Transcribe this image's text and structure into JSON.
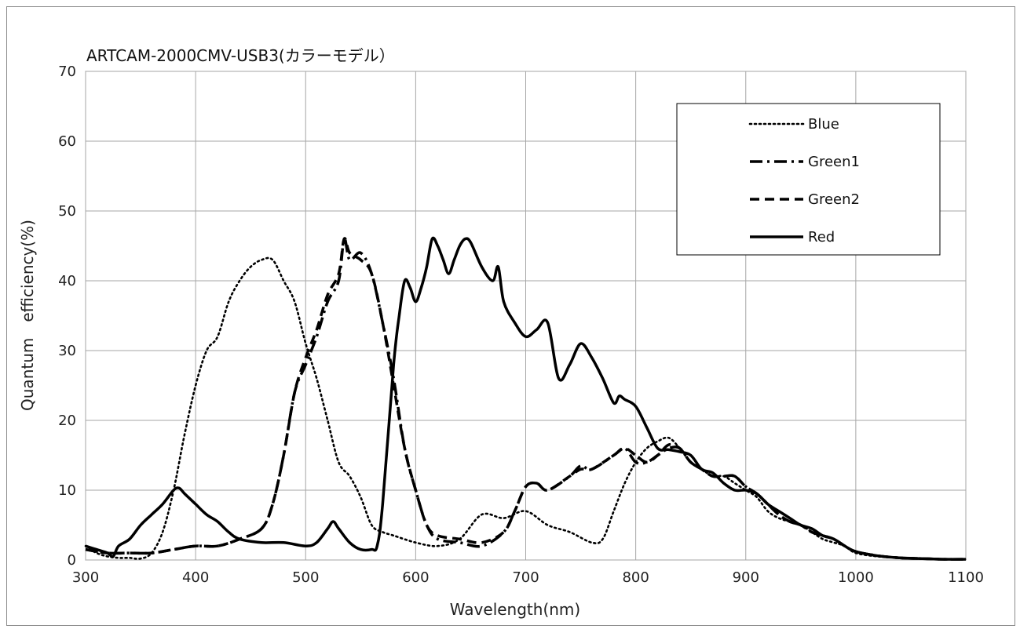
{
  "chart_data": {
    "type": "line",
    "title": "ARTCAM-2000CMV-USB3(カラーモデル）",
    "xlabel": "Wavelength(nm)",
    "ylabel": "Quantum　efficiency(%)",
    "xlim": [
      300,
      1100
    ],
    "ylim": [
      0,
      70
    ],
    "xticks": [
      300,
      400,
      500,
      600,
      700,
      800,
      900,
      1000,
      1100
    ],
    "yticks": [
      0,
      10,
      20,
      30,
      40,
      50,
      60,
      70
    ],
    "xtick_labels": [
      "300",
      "400",
      "500",
      "600",
      "700",
      "800",
      "900",
      "1000",
      "1100"
    ],
    "ytick_labels": [
      "0",
      "10",
      "20",
      "30",
      "40",
      "50",
      "60",
      "70"
    ],
    "grid": true,
    "legend": "top-right",
    "series": [
      {
        "name": "Blue",
        "dash": "dotted",
        "color": "#000000",
        "x": [
          300,
          310,
          320,
          330,
          340,
          350,
          360,
          370,
          380,
          390,
          400,
          410,
          420,
          430,
          440,
          450,
          460,
          470,
          480,
          490,
          500,
          510,
          520,
          530,
          540,
          550,
          560,
          570,
          580,
          600,
          620,
          640,
          660,
          680,
          700,
          720,
          740,
          760,
          770,
          780,
          790,
          800,
          810,
          820,
          830,
          840,
          850,
          860,
          870,
          880,
          890,
          900,
          910,
          920,
          930,
          940,
          950,
          960,
          970,
          980,
          990,
          1000,
          1020,
          1040,
          1060,
          1080,
          1100
        ],
        "y": [
          2,
          1,
          0.5,
          0.3,
          0.3,
          0.2,
          1,
          4,
          10,
          18,
          25,
          30,
          32,
          37,
          40,
          42,
          43,
          43,
          40,
          37,
          31,
          26,
          20,
          14,
          12,
          9,
          5,
          4,
          3.5,
          2.5,
          2,
          3,
          6.5,
          6,
          7,
          5,
          4,
          2.5,
          3,
          7,
          11,
          14,
          16,
          17,
          17.5,
          16,
          14,
          13,
          12,
          12,
          11,
          10,
          9,
          7,
          6,
          5.5,
          5,
          4,
          3,
          2.5,
          2,
          1,
          0.5,
          0.3,
          0.2,
          0.1,
          0.1
        ]
      },
      {
        "name": "Green1",
        "dash": "dash-dot",
        "color": "#000000",
        "x": [
          300,
          320,
          340,
          360,
          380,
          400,
          420,
          440,
          460,
          470,
          480,
          490,
          500,
          510,
          520,
          530,
          535,
          540,
          550,
          560,
          570,
          580,
          590,
          600,
          610,
          620,
          640,
          660,
          680,
          690,
          700,
          710,
          720,
          740,
          750,
          760,
          780,
          790,
          800,
          810,
          820,
          830,
          840,
          850,
          860,
          870,
          880,
          890,
          900,
          910,
          920,
          930,
          940,
          950,
          960,
          970,
          980,
          990,
          1000,
          1020,
          1040,
          1060,
          1080,
          1100
        ],
        "y": [
          1.5,
          1,
          1,
          1,
          1.5,
          2,
          2,
          3,
          4.5,
          8,
          15,
          24,
          28,
          32,
          37,
          40,
          46,
          43,
          44,
          41,
          34,
          26,
          16,
          10,
          5,
          3,
          2.5,
          2,
          4,
          7,
          10.5,
          11,
          10,
          12,
          13.5,
          13,
          15,
          16,
          14,
          14,
          15,
          16,
          16,
          14,
          13,
          12,
          12,
          12,
          10.5,
          9.5,
          8,
          6.5,
          5.5,
          5,
          4,
          3.5,
          3,
          2,
          1.2,
          0.6,
          0.3,
          0.2,
          0.1,
          0.1
        ]
      },
      {
        "name": "Green2",
        "dash": "dashed",
        "color": "#000000",
        "x": [
          300,
          320,
          340,
          360,
          380,
          400,
          420,
          440,
          460,
          470,
          480,
          490,
          500,
          510,
          520,
          530,
          535,
          540,
          550,
          560,
          570,
          580,
          590,
          600,
          610,
          620,
          640,
          660,
          680,
          690,
          700,
          710,
          720,
          740,
          750,
          760,
          780,
          790,
          800,
          810,
          820,
          830,
          840,
          850,
          860,
          870,
          880,
          890,
          900,
          910,
          920,
          930,
          940,
          950,
          960,
          970,
          980,
          990,
          1000,
          1020,
          1040,
          1060,
          1080,
          1100
        ],
        "y": [
          1.5,
          1,
          1,
          1,
          1.5,
          2,
          2,
          3,
          4.5,
          8,
          15,
          24,
          29,
          33,
          38,
          41,
          46,
          44,
          43,
          41,
          34,
          25,
          16,
          10,
          5,
          3.5,
          3,
          2.5,
          4,
          7,
          10.5,
          11,
          10,
          12,
          13,
          13,
          15,
          16,
          15,
          14,
          15,
          16.5,
          16,
          14,
          13,
          12,
          12,
          12,
          10.5,
          9.5,
          8,
          6.5,
          5.5,
          5,
          4,
          3.5,
          3,
          2,
          1.2,
          0.6,
          0.3,
          0.2,
          0.1,
          0.1
        ]
      },
      {
        "name": "Red",
        "dash": "solid",
        "color": "#000000",
        "x": [
          300,
          310,
          320,
          325,
          330,
          340,
          350,
          360,
          370,
          380,
          385,
          390,
          400,
          410,
          420,
          430,
          440,
          460,
          480,
          500,
          510,
          520,
          525,
          530,
          540,
          550,
          560,
          565,
          570,
          580,
          585,
          590,
          595,
          600,
          605,
          610,
          615,
          620,
          625,
          630,
          635,
          640,
          645,
          650,
          660,
          670,
          675,
          680,
          690,
          700,
          710,
          720,
          730,
          740,
          750,
          760,
          770,
          780,
          785,
          790,
          800,
          810,
          820,
          830,
          840,
          850,
          860,
          870,
          880,
          890,
          900,
          910,
          920,
          930,
          940,
          950,
          960,
          970,
          980,
          990,
          1000,
          1020,
          1040,
          1060,
          1080,
          1100
        ],
        "y": [
          2,
          1.5,
          1,
          0.5,
          2,
          3,
          5,
          6.5,
          8,
          10,
          10.3,
          9.5,
          8,
          6.5,
          5.5,
          4,
          3,
          2.5,
          2.5,
          2,
          2.5,
          4.5,
          5.5,
          4.5,
          2.5,
          1.5,
          1.5,
          2,
          8,
          28,
          35,
          40,
          39,
          37,
          39,
          42,
          46,
          45,
          43,
          41,
          43,
          45,
          46,
          45.5,
          42,
          40,
          42,
          37,
          34,
          32,
          33,
          34,
          26,
          28,
          31,
          29,
          26,
          22.5,
          23.5,
          23,
          22,
          19,
          16,
          15.8,
          15.5,
          15,
          13,
          12.5,
          11,
          10,
          10,
          9.5,
          8,
          7,
          6,
          5,
          4.5,
          3.5,
          3,
          2,
          1.2,
          0.6,
          0.3,
          0.2,
          0.1,
          0.1
        ]
      }
    ]
  }
}
